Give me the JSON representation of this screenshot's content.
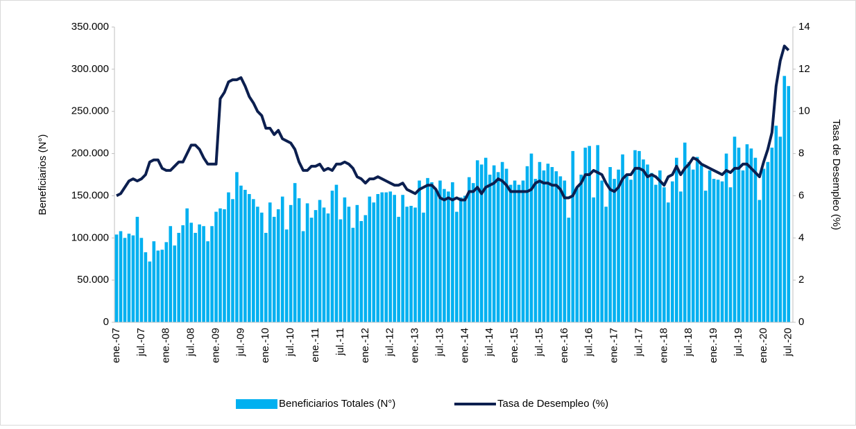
{
  "chart_data": {
    "type": "bar",
    "categories": [
      "ene.-07",
      null,
      null,
      null,
      null,
      null,
      "jul.-07",
      null,
      null,
      null,
      null,
      null,
      "ene.-08",
      null,
      null,
      null,
      null,
      null,
      "jul.-08",
      null,
      null,
      null,
      null,
      null,
      "ene.-09",
      null,
      null,
      null,
      null,
      null,
      "jul.-09",
      null,
      null,
      null,
      null,
      null,
      "ene.-10",
      null,
      null,
      null,
      null,
      null,
      "jul.-10",
      null,
      null,
      null,
      null,
      null,
      "ene.-11",
      null,
      null,
      null,
      null,
      null,
      "jul.-11",
      null,
      null,
      null,
      null,
      null,
      "ene.-12",
      null,
      null,
      null,
      null,
      null,
      "jul.-12",
      null,
      null,
      null,
      null,
      null,
      "ene.-13",
      null,
      null,
      null,
      null,
      null,
      "jul.-13",
      null,
      null,
      null,
      null,
      null,
      "ene.-14",
      null,
      null,
      null,
      null,
      null,
      "jul.-14",
      null,
      null,
      null,
      null,
      null,
      "ene.-15",
      null,
      null,
      null,
      null,
      null,
      "jul.-15",
      null,
      null,
      null,
      null,
      null,
      "ene.-16",
      null,
      null,
      null,
      null,
      null,
      "jul.-16",
      null,
      null,
      null,
      null,
      null,
      "ene.-17",
      null,
      null,
      null,
      null,
      null,
      "jul.-17",
      null,
      null,
      null,
      null,
      null,
      "ene.-18",
      null,
      null,
      null,
      null,
      null,
      "jul.-18",
      null,
      null,
      null,
      null,
      null,
      "ene.-19",
      null,
      null,
      null,
      null,
      null,
      "jul.-19",
      null,
      null,
      null,
      null,
      null,
      "ene.-20",
      null,
      null,
      null,
      null,
      null,
      "jul.-20"
    ],
    "series": [
      {
        "name": "Beneficiarios Totales (N°)",
        "type": "bar",
        "color": "#00b0f0",
        "values": [
          104000,
          108000,
          100000,
          105000,
          103000,
          125000,
          100000,
          83000,
          72000,
          96000,
          85000,
          86000,
          95000,
          114000,
          91000,
          106000,
          115000,
          135000,
          118000,
          106000,
          116000,
          114000,
          96000,
          114000,
          131000,
          135000,
          134000,
          154000,
          146000,
          178000,
          162000,
          157000,
          152000,
          146000,
          137000,
          130000,
          106000,
          142000,
          125000,
          134000,
          149000,
          110000,
          139000,
          165000,
          147000,
          108000,
          141000,
          124000,
          133000,
          145000,
          136000,
          129000,
          156000,
          163000,
          122000,
          148000,
          137000,
          112000,
          139000,
          120000,
          127000,
          149000,
          142000,
          152000,
          154000,
          154000,
          155000,
          151000,
          125000,
          151000,
          137000,
          138000,
          136000,
          168000,
          130000,
          171000,
          166000,
          157000,
          168000,
          158000,
          155000,
          166000,
          131000,
          148000,
          150000,
          172000,
          165000,
          192000,
          187000,
          195000,
          175000,
          186000,
          178000,
          190000,
          182000,
          163000,
          168000,
          163000,
          168000,
          185000,
          200000,
          170000,
          190000,
          180000,
          188000,
          184000,
          179000,
          173000,
          168000,
          124000,
          203000,
          160000,
          175000,
          207000,
          209000,
          148000,
          210000,
          168000,
          137000,
          184000,
          170000,
          181000,
          199000,
          175000,
          169000,
          204000,
          203000,
          193000,
          187000,
          177000,
          163000,
          180000,
          160000,
          142000,
          167000,
          195000,
          155000,
          213000,
          190000,
          181000,
          196000,
          186000,
          156000,
          180000,
          170000,
          169000,
          167000,
          200000,
          160000,
          220000,
          207000,
          180000,
          211000,
          206000,
          195000,
          145000,
          182000,
          190000,
          207000,
          233000,
          220000,
          292000,
          280000
        ]
      },
      {
        "name": "Tasa de Desempleo (%)",
        "type": "line",
        "axis": "y2",
        "color": "#0c1f4f",
        "values": [
          6.0,
          6.1,
          6.4,
          6.7,
          6.8,
          6.7,
          6.8,
          7.0,
          7.6,
          7.7,
          7.7,
          7.3,
          7.2,
          7.2,
          7.4,
          7.6,
          7.6,
          8.0,
          8.4,
          8.4,
          8.2,
          7.8,
          7.5,
          7.5,
          7.5,
          10.6,
          10.9,
          11.4,
          11.5,
          11.5,
          11.6,
          11.2,
          10.7,
          10.4,
          10.0,
          9.8,
          9.2,
          9.2,
          8.9,
          9.1,
          8.7,
          8.6,
          8.5,
          8.2,
          7.6,
          7.2,
          7.2,
          7.4,
          7.4,
          7.5,
          7.2,
          7.3,
          7.2,
          7.5,
          7.5,
          7.6,
          7.5,
          7.3,
          6.9,
          6.8,
          6.6,
          6.8,
          6.8,
          6.9,
          6.8,
          6.7,
          6.6,
          6.5,
          6.5,
          6.6,
          6.3,
          6.2,
          6.1,
          6.3,
          6.4,
          6.5,
          6.5,
          6.3,
          5.9,
          5.8,
          5.9,
          5.8,
          5.9,
          5.8,
          5.8,
          6.2,
          6.2,
          6.4,
          6.1,
          6.4,
          6.5,
          6.6,
          6.8,
          6.7,
          6.5,
          6.2,
          6.2,
          6.2,
          6.2,
          6.2,
          6.3,
          6.6,
          6.7,
          6.6,
          6.6,
          6.5,
          6.5,
          6.3,
          5.9,
          5.9,
          6.0,
          6.4,
          6.6,
          7.0,
          7.0,
          7.2,
          7.1,
          7.0,
          6.6,
          6.3,
          6.2,
          6.4,
          6.8,
          7.0,
          7.0,
          7.3,
          7.3,
          7.2,
          6.9,
          7.0,
          6.9,
          6.7,
          6.5,
          6.9,
          7.0,
          7.4,
          7.0,
          7.3,
          7.5,
          7.8,
          7.7,
          7.5,
          7.4,
          7.3,
          7.2,
          7.1,
          7.0,
          7.2,
          7.1,
          7.3,
          7.3,
          7.5,
          7.5,
          7.3,
          7.1,
          6.9,
          7.6,
          8.2,
          9.0,
          11.2,
          12.4,
          13.1,
          12.9
        ]
      }
    ],
    "ylabel": "Beneficiarios (N°)",
    "y2label": "Tasa de Desempleo (%)",
    "ylim": [
      0,
      350000
    ],
    "yticks": [
      0,
      {
        "value": 50000,
        "label": "50.000"
      },
      {
        "value": 100000,
        "label": "100.000"
      },
      {
        "value": 150000,
        "label": "150.000"
      },
      {
        "value": 200000,
        "label": "200.000"
      },
      {
        "value": 250000,
        "label": "250.000"
      },
      {
        "value": 300000,
        "label": "300.000"
      },
      {
        "value": 350000,
        "label": "350.000"
      }
    ],
    "y2lim": [
      0,
      14
    ],
    "y2ticks": [
      0,
      2,
      4,
      6,
      8,
      10,
      12,
      14
    ],
    "legend": "bottom"
  }
}
